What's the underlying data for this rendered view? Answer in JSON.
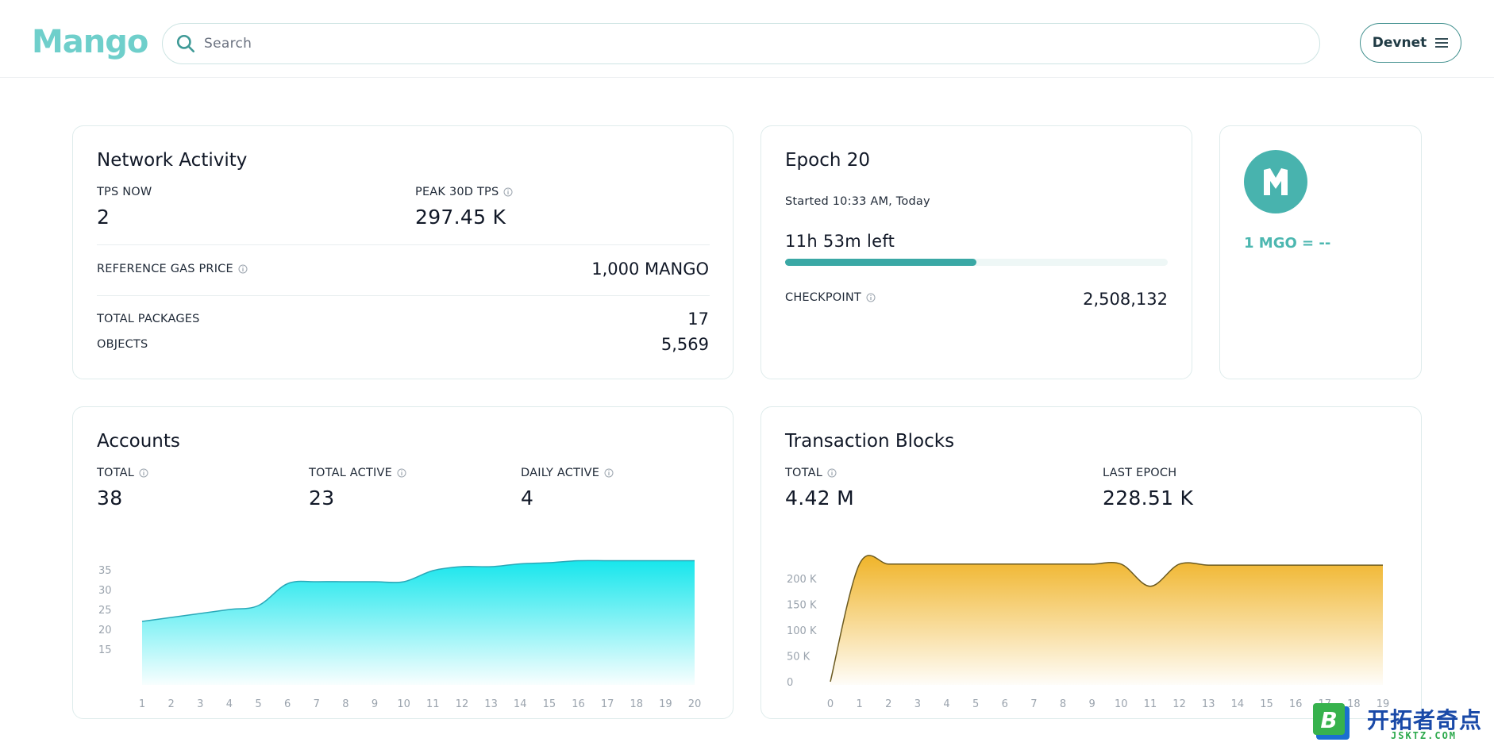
{
  "header": {
    "logo_text": "Mango",
    "search_placeholder": "Search",
    "network_label": "Devnet"
  },
  "network_activity": {
    "title": "Network Activity",
    "tps_now_label": "TPS NOW",
    "tps_now_value": "2",
    "peak_label": "PEAK 30D TPS",
    "peak_value": "297.45 K",
    "gas_label": "REFERENCE GAS PRICE",
    "gas_value": "1,000 MANGO",
    "packages_label": "TOTAL PACKAGES",
    "packages_value": "17",
    "objects_label": "OBJECTS",
    "objects_value": "5,569"
  },
  "epoch": {
    "title": "Epoch 20",
    "started": "Started 10:33 AM, Today",
    "time_left": "11h 53m left",
    "progress_fraction": 0.5,
    "checkpoint_label": "CHECKPOINT",
    "checkpoint_value": "2,508,132"
  },
  "token": {
    "price_text": "1 MGO = --"
  },
  "accounts": {
    "title": "Accounts",
    "total_label": "TOTAL",
    "total_value": "38",
    "active_label": "TOTAL ACTIVE",
    "active_value": "23",
    "daily_label": "DAILY ACTIVE",
    "daily_value": "4"
  },
  "transactions": {
    "title": "Transaction Blocks",
    "total_label": "TOTAL",
    "total_value": "4.42 M",
    "last_epoch_label": "LAST EPOCH",
    "last_epoch_value": "228.51 K"
  },
  "colors": {
    "accent": "#48b3ae",
    "accounts_fill": "#17e6ec",
    "tx_fill": "#f0b429"
  },
  "chart_data": [
    {
      "type": "area",
      "x": [
        1,
        2,
        3,
        4,
        5,
        6,
        7,
        8,
        9,
        10,
        11,
        12,
        13,
        14,
        15,
        16,
        17,
        18,
        19,
        20
      ],
      "series": [
        {
          "values": [
            22,
            23,
            24,
            25,
            26,
            31.5,
            32,
            32,
            32,
            32,
            34.8,
            35.8,
            35.8,
            36.5,
            36.8,
            37.3,
            37.3,
            37.3,
            37.3,
            37.3
          ]
        }
      ],
      "yticks": [
        15,
        20,
        25,
        30,
        35
      ],
      "ylim": [
        13,
        38
      ],
      "xlabel": "",
      "ylabel": "",
      "grid": false
    },
    {
      "type": "area",
      "x": [
        0,
        1,
        2,
        3,
        4,
        5,
        6,
        7,
        8,
        9,
        10,
        11,
        12,
        13,
        14,
        15,
        16,
        17,
        18,
        19
      ],
      "series": [
        {
          "values": [
            0,
            228,
            228,
            228,
            228,
            228,
            228,
            228,
            228,
            228,
            228,
            185,
            228,
            226,
            226,
            226,
            226,
            226,
            226,
            226
          ]
        }
      ],
      "yticks": [
        0,
        50,
        100,
        150,
        200
      ],
      "ytick_labels": [
        "0",
        "50 K",
        "100 K",
        "150 K",
        "200 K"
      ],
      "ylim": [
        0,
        240
      ],
      "xlabel": "",
      "ylabel": "",
      "grid": false
    }
  ]
}
